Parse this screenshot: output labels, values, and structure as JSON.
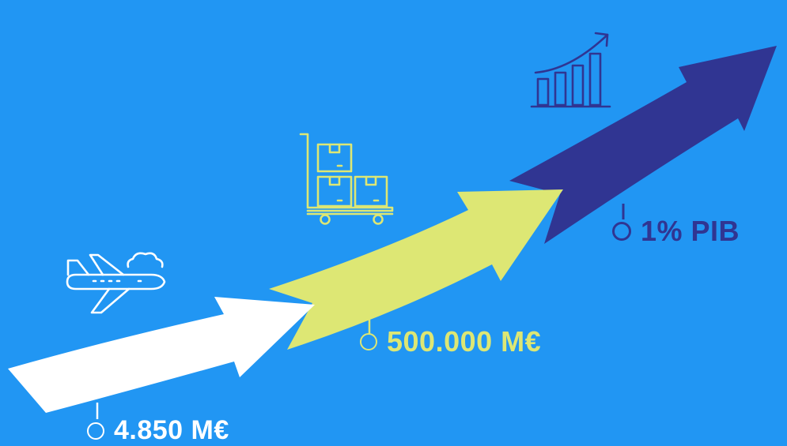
{
  "stages": [
    {
      "id": "stage-1",
      "icon": "airplane-icon",
      "value": "4.850 M€",
      "color": "#FFFFFF"
    },
    {
      "id": "stage-2",
      "icon": "luggage-cart-icon",
      "value": "500.000 M€",
      "color": "#DDE774"
    },
    {
      "id": "stage-3",
      "icon": "growth-chart-icon",
      "value": "1% PIB",
      "color": "#303592"
    }
  ],
  "background_color": "#2196F3"
}
